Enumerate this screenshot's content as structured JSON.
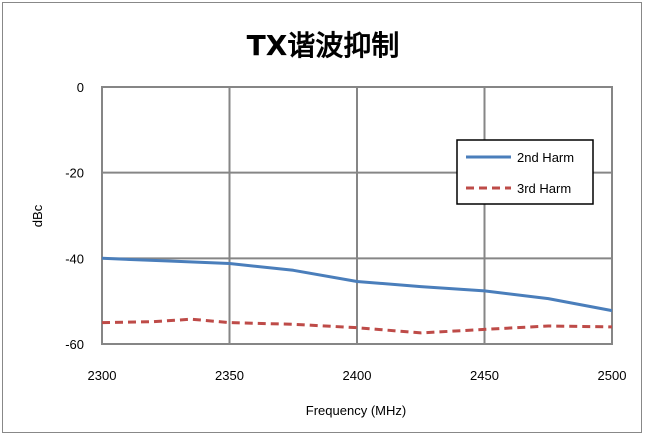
{
  "chart_data": {
    "type": "line",
    "title": "TX谐波抑制",
    "xlabel": "Frequency (MHz)",
    "ylabel": "dBc",
    "xlim": [
      2300,
      2500
    ],
    "ylim": [
      -60,
      0
    ],
    "xticks": [
      2300,
      2350,
      2400,
      2450,
      2500
    ],
    "yticks": [
      0,
      -20,
      -40,
      -60
    ],
    "grid": true,
    "legend_position": "right",
    "series": [
      {
        "name": "2nd Harm",
        "color": "#4a7ebb",
        "style": "solid",
        "x": [
          2300,
          2325,
          2350,
          2375,
          2400,
          2425,
          2450,
          2475,
          2500
        ],
        "y": [
          -40.0,
          -40.6,
          -41.2,
          -42.8,
          -45.4,
          -46.6,
          -47.6,
          -49.4,
          -52.2
        ]
      },
      {
        "name": "3rd Harm",
        "color": "#be4b48",
        "style": "dashed",
        "x": [
          2300,
          2320,
          2335,
          2350,
          2375,
          2400,
          2425,
          2450,
          2475,
          2500
        ],
        "y": [
          -55.0,
          -54.8,
          -54.2,
          -55.0,
          -55.4,
          -56.2,
          -57.4,
          -56.6,
          -55.8,
          -56.0
        ]
      }
    ]
  }
}
